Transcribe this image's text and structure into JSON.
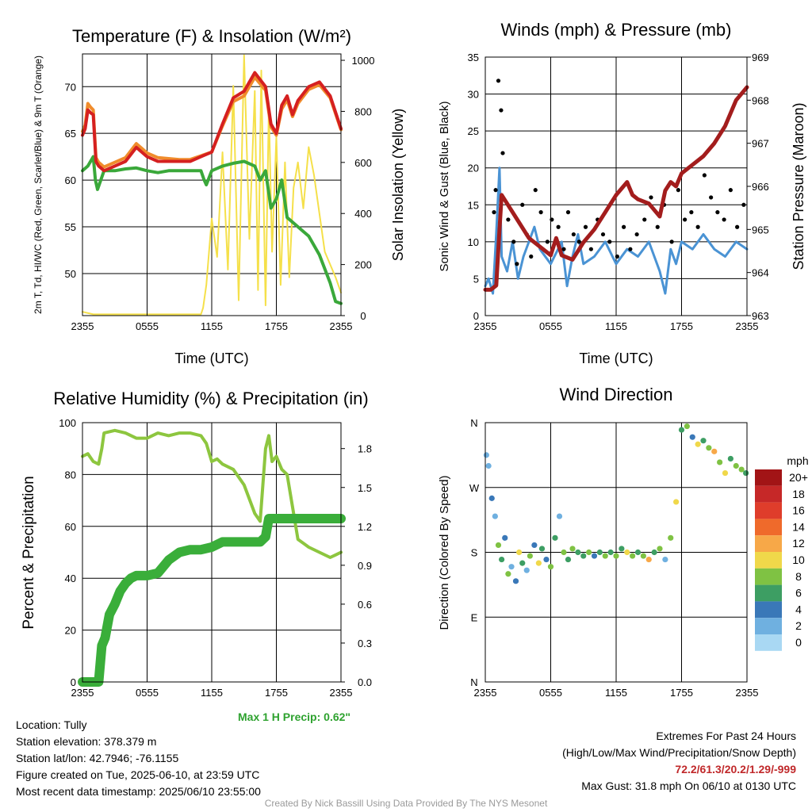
{
  "chart_data": [
    {
      "type": "line",
      "title": "Temperature (F) & Insolation (W/m²)",
      "xlabel": "Time (UTC)",
      "ylabel_left": "2m T, Td, HI/WC (Red, Green, Scarlet/Blue) & 9m T (Orange)",
      "ylabel_right": "Solar Insolation (Yellow)",
      "x_ticks": [
        "2355",
        "0555",
        "1155",
        "1755",
        "2355"
      ],
      "ylim_left": [
        45.5,
        73.5
      ],
      "yticks_left": [
        50,
        55,
        60,
        65,
        70
      ],
      "ylim_right": [
        0,
        1025
      ],
      "yticks_right": [
        0,
        200,
        400,
        600,
        800,
        1000
      ],
      "grid": true,
      "series": [
        {
          "name": "2m T",
          "color": "#d52020",
          "axis": "left",
          "x": [
            0,
            0.25,
            0.5,
            0.75,
            1,
            1.25,
            1.5,
            2,
            3,
            4,
            5,
            6,
            7,
            8,
            9,
            10,
            11,
            12,
            13,
            14,
            15,
            16,
            17,
            17.5,
            18,
            18.5,
            19,
            19.5,
            20,
            21,
            22,
            23,
            24
          ],
          "y": [
            64.8,
            65.5,
            67.5,
            67.2,
            67,
            62,
            61.5,
            61,
            61.5,
            62,
            63.5,
            62.5,
            62,
            62,
            62,
            62,
            62.5,
            63,
            66,
            68.8,
            69.5,
            71.5,
            70,
            66,
            65,
            68,
            69,
            67,
            68.5,
            70,
            70.5,
            69,
            65.5
          ]
        },
        {
          "name": "9m T",
          "color": "#f08c2c",
          "axis": "left",
          "x": [
            0,
            0.25,
            0.5,
            0.75,
            1,
            1.25,
            1.5,
            2,
            3,
            4,
            5,
            6,
            7,
            8,
            9,
            10,
            11,
            12,
            13,
            14,
            15,
            16,
            17,
            17.5,
            18,
            18.5,
            19,
            19.5,
            20,
            21,
            22,
            23,
            24
          ],
          "y": [
            65.2,
            65.9,
            68.2,
            67.8,
            67.5,
            62.4,
            61.9,
            61.4,
            61.9,
            62.4,
            63.9,
            62.9,
            62.4,
            62.3,
            62.2,
            62.2,
            62.6,
            63,
            65.8,
            68.4,
            69,
            71,
            69.6,
            65.7,
            64.8,
            67.6,
            68.6,
            66.8,
            68.2,
            69.7,
            70.2,
            68.8,
            65.4
          ]
        },
        {
          "name": "2m Td",
          "color": "#3aa83a",
          "axis": "left",
          "x": [
            0,
            0.5,
            1,
            1.2,
            1.4,
            2,
            3,
            4,
            5,
            6,
            7,
            8,
            9,
            10,
            11,
            11.3,
            11.5,
            12,
            13,
            14,
            15,
            16,
            16.5,
            17,
            17.5,
            18,
            18.5,
            19,
            20,
            21,
            22,
            23,
            23.5,
            24
          ],
          "y": [
            61,
            61.5,
            62.5,
            60,
            59,
            61,
            61,
            61.2,
            61.3,
            61,
            60.8,
            61,
            61,
            61,
            61,
            60,
            59.5,
            61,
            61.5,
            61.8,
            62,
            61.5,
            60,
            61,
            57,
            58,
            60,
            56,
            55,
            54,
            52,
            49,
            47,
            46.8
          ]
        },
        {
          "name": "Solar Insolation",
          "color": "#f5e04a",
          "axis": "right",
          "x": [
            0,
            1,
            2,
            3,
            4,
            5,
            6,
            7,
            8,
            9,
            10,
            11,
            11.2,
            11.5,
            12,
            12.5,
            13,
            13.5,
            14,
            14.5,
            15,
            15.5,
            16,
            16.3,
            16.6,
            17,
            17.3,
            17.6,
            18,
            18.4,
            18.8,
            19.2,
            19.6,
            20,
            20.5,
            21,
            21.5,
            22,
            22.5,
            23,
            23.5,
            24
          ],
          "y": [
            15,
            5,
            5,
            5,
            5,
            5,
            5,
            5,
            5,
            5,
            5,
            5,
            30,
            120,
            380,
            230,
            640,
            180,
            900,
            60,
            1020,
            300,
            880,
            100,
            960,
            40,
            820,
            250,
            700,
            120,
            600,
            150,
            500,
            600,
            420,
            660,
            550,
            400,
            250,
            200,
            150,
            90
          ]
        }
      ]
    },
    {
      "type": "line",
      "title": "Winds (mph) & Pressure (mb)",
      "xlabel": "Time (UTC)",
      "ylabel_left": "Sonic Wind & Gust (Blue, Black)",
      "ylabel_right": "Station Pressure (Maroon)",
      "x_ticks": [
        "2355",
        "0555",
        "1155",
        "1755",
        "2355"
      ],
      "ylim_left": [
        0,
        35
      ],
      "yticks_left": [
        0,
        5,
        10,
        15,
        20,
        25,
        30,
        35
      ],
      "ylim_right": [
        963,
        969
      ],
      "yticks_right": [
        963,
        964,
        965,
        966,
        967,
        968,
        969
      ],
      "grid": true,
      "series": [
        {
          "name": "Sonic Wind",
          "color": "#4a93d4",
          "axis": "left",
          "x": [
            0,
            0.3,
            0.7,
            1,
            1.3,
            1.5,
            2,
            2.5,
            3,
            3.5,
            4,
            4.5,
            5,
            6,
            7,
            7.5,
            8,
            8.5,
            9,
            10,
            11,
            12,
            13,
            14,
            15,
            16,
            16.5,
            17,
            17.5,
            18,
            19,
            20,
            21,
            22,
            23,
            24
          ],
          "y": [
            4,
            5,
            3,
            11,
            20,
            8,
            6,
            10,
            5,
            8,
            10,
            12,
            9,
            7,
            10,
            4,
            8,
            11,
            7,
            8,
            10,
            7,
            9,
            8,
            10,
            6,
            3,
            9,
            7,
            10,
            9,
            11,
            9,
            8,
            10,
            9
          ]
        },
        {
          "name": "Station Pressure",
          "color": "#a31d1d",
          "axis": "right",
          "x": [
            0,
            0.5,
            1,
            1.3,
            1.5,
            2,
            3,
            4,
            5,
            6,
            6.5,
            7,
            8,
            9,
            10,
            11,
            12,
            13,
            13.5,
            14,
            15,
            16,
            16.5,
            17,
            17.5,
            18,
            19,
            20,
            21,
            22,
            23,
            24
          ],
          "y": [
            963.6,
            963.6,
            963.7,
            965.0,
            965.8,
            965.6,
            965.2,
            964.8,
            964.6,
            964.4,
            964.8,
            964.4,
            964.3,
            964.7,
            965.0,
            965.4,
            965.8,
            966.1,
            965.8,
            965.7,
            965.6,
            965.3,
            965.9,
            966.1,
            966.0,
            966.3,
            966.5,
            966.7,
            967.0,
            967.4,
            968.0,
            968.3
          ]
        }
      ],
      "points": {
        "name": "Gust",
        "color": "#000000",
        "axis": "left",
        "x": [
          0.8,
          0.95,
          1.2,
          1.45,
          1.6,
          2.1,
          2.6,
          2.9,
          3.4,
          3.8,
          4.2,
          4.6,
          5.1,
          5.7,
          6.1,
          6.7,
          7.2,
          7.6,
          8.1,
          8.6,
          9.2,
          9.7,
          10.3,
          10.8,
          11.4,
          12.1,
          12.7,
          13.3,
          13.9,
          14.6,
          15.2,
          15.8,
          16.4,
          17.1,
          17.7,
          18.3,
          18.9,
          19.5,
          20.1,
          20.7,
          21.3,
          21.9,
          22.5,
          23.1,
          23.7
        ],
        "y": [
          14,
          17,
          31.8,
          27.8,
          22,
          13,
          10,
          7,
          15,
          11,
          8,
          17,
          14,
          10,
          13,
          12,
          9,
          14,
          11,
          10,
          12,
          9,
          13,
          11,
          10,
          8,
          12,
          9,
          11,
          13,
          16,
          12,
          15,
          10,
          17,
          13,
          14,
          12,
          19,
          16,
          14,
          13,
          17,
          12,
          15
        ]
      }
    },
    {
      "type": "line",
      "title": "Relative Humidity (%) & Precipitation (in)",
      "ylabel_left": "Percent & Precipitation",
      "x_ticks": [
        "2355",
        "0555",
        "1155",
        "1755",
        "2355"
      ],
      "ylim_left": [
        0,
        100
      ],
      "yticks_left": [
        0,
        20,
        40,
        60,
        80,
        100
      ],
      "ylim_right": [
        0,
        2.0
      ],
      "yticks_right": [
        "0.0",
        "0.3",
        "0.6",
        "0.9",
        "1.2",
        "1.5",
        "1.8"
      ],
      "grid": true,
      "series": [
        {
          "name": "Relative Humidity",
          "color": "#8dc63f",
          "axis": "left",
          "x": [
            0,
            0.5,
            1,
            1.5,
            1.8,
            2,
            3,
            4,
            5,
            6,
            7,
            8,
            9,
            10,
            11,
            11.5,
            12,
            12.5,
            13,
            14,
            15,
            16,
            16.5,
            17,
            17.3,
            17.6,
            18,
            18.5,
            19,
            20,
            21,
            22,
            23,
            23.5,
            24
          ],
          "y": [
            87,
            88,
            85,
            84,
            90,
            96,
            97,
            96,
            94,
            94,
            96,
            95,
            96,
            96,
            95,
            92,
            85,
            86,
            84,
            82,
            76,
            65,
            62,
            90,
            95,
            85,
            87,
            82,
            80,
            55,
            52,
            50,
            48,
            49,
            50
          ]
        },
        {
          "name": "Precipitation",
          "color": "#3aae3a",
          "axis": "left",
          "x": [
            0,
            1,
            1.5,
            1.8,
            2.1,
            2.5,
            3,
            3.5,
            4,
            4.5,
            5,
            6,
            7,
            8,
            9,
            10,
            11,
            12,
            13,
            14,
            15,
            16,
            16.5,
            17,
            17.3,
            17.6,
            18,
            19,
            20,
            21,
            22,
            23,
            24
          ],
          "y": [
            0,
            0,
            0,
            14,
            17,
            26,
            30,
            35,
            38,
            40,
            41,
            41,
            42,
            47,
            50,
            51,
            51,
            52,
            54,
            54,
            54,
            54,
            54,
            56,
            63,
            63,
            63,
            63,
            63,
            63,
            63,
            63,
            63
          ]
        }
      ]
    },
    {
      "type": "scatter",
      "title": "Wind Direction",
      "ylabel": "Direction (Colored By Speed)",
      "x_ticks": [
        "2355",
        "0555",
        "1155",
        "1755",
        "2355"
      ],
      "y_ticks": [
        "N",
        "E",
        "S",
        "W",
        "N"
      ],
      "ylim": [
        0,
        360
      ],
      "grid": true,
      "colorbar": {
        "title": "mph",
        "labels": [
          "20+",
          "18",
          "16",
          "14",
          "12",
          "10",
          "8",
          "6",
          "4",
          "2",
          "0"
        ],
        "colors": [
          "#a21416",
          "#c62828",
          "#df3d2b",
          "#ef6a2b",
          "#f7a848",
          "#f0d84a",
          "#7fc243",
          "#3d9e63",
          "#3a78b8",
          "#6fb0e0",
          "#a9d8f3"
        ]
      },
      "points": {
        "x": [
          0.1,
          0.3,
          0.6,
          0.9,
          1.2,
          1.5,
          1.8,
          2.1,
          2.4,
          2.8,
          3.1,
          3.4,
          3.8,
          4.1,
          4.5,
          4.9,
          5.2,
          5.6,
          6.0,
          6.4,
          6.8,
          7.2,
          7.6,
          8.0,
          8.5,
          9.0,
          9.5,
          10.0,
          10.5,
          11.0,
          11.5,
          12.0,
          12.5,
          13.0,
          13.5,
          14.0,
          14.5,
          15.0,
          15.5,
          16.0,
          16.5,
          17.0,
          17.5,
          18.0,
          18.5,
          19.0,
          19.5,
          20.0,
          20.5,
          21.0,
          21.5,
          22.0,
          22.5,
          23.0,
          23.5,
          23.9
        ],
        "y": [
          315,
          300,
          255,
          230,
          190,
          170,
          200,
          150,
          160,
          140,
          180,
          165,
          155,
          175,
          190,
          165,
          185,
          170,
          160,
          200,
          230,
          180,
          170,
          185,
          180,
          175,
          180,
          175,
          180,
          175,
          180,
          175,
          185,
          180,
          175,
          180,
          175,
          170,
          180,
          185,
          170,
          200,
          250,
          350,
          355,
          340,
          330,
          335,
          325,
          320,
          305,
          290,
          310,
          300,
          295,
          290
        ],
        "speed": [
          3,
          2,
          5,
          3,
          8,
          6,
          4,
          9,
          2,
          4,
          10,
          7,
          3,
          8,
          5,
          11,
          7,
          4,
          9,
          6,
          3,
          8,
          7,
          9,
          6,
          7,
          8,
          5,
          7,
          9,
          6,
          8,
          7,
          10,
          9,
          7,
          8,
          12,
          6,
          9,
          3,
          8,
          10,
          7,
          9,
          5,
          11,
          6,
          8,
          12,
          9,
          10,
          7,
          8,
          9,
          6
        ]
      }
    }
  ],
  "info_left": {
    "location": "Location: Tully",
    "elevation": "Station elevation: 378.379 m",
    "latlon": "Station lat/lon: 42.7946; -76.1155",
    "created": "Figure created on Tue, 2025-06-10, at 23:59 UTC",
    "recent": "Most recent data timestamp: 2025/06/10 23:55:00"
  },
  "max_precip": "Max 1 H Precip: 0.62\"",
  "info_right": {
    "extremes_title": "Extremes For Past 24 Hours",
    "extremes_desc": "(High/Low/Max Wind/Precipitation/Snow Depth)",
    "extremes_values": "72.2/61.3/20.2/1.29/-999",
    "max_gust": "Max Gust: 31.8 mph On 06/10 at 0130 UTC"
  },
  "credit": "Created By Nick Bassill Using Data Provided By The NYS Mesonet"
}
